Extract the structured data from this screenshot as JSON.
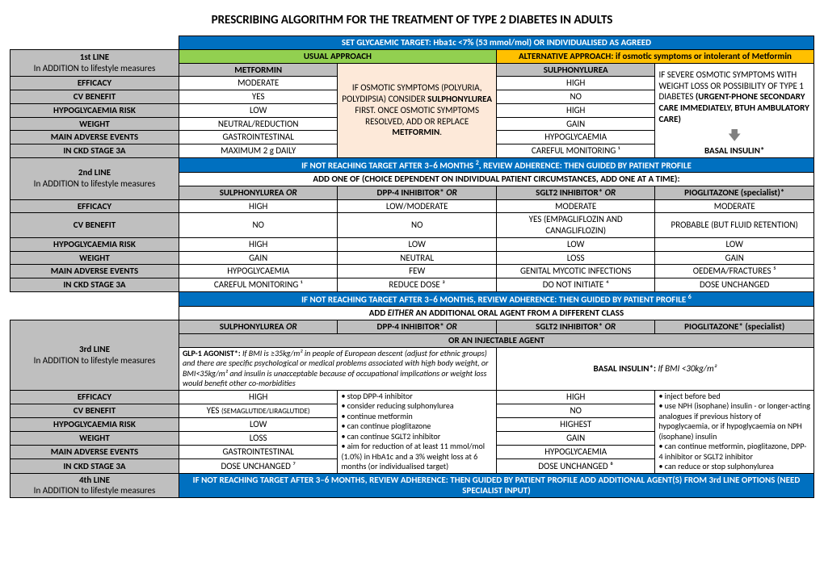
{
  "title": "PRESCRIBING ALGORITHM FOR THE TREATMENT OF TYPE 2 DIABETES IN ADULTS",
  "colors": {
    "blue": "#0070c0",
    "green": "#92d050",
    "orange": "#ffc000",
    "gray": "#bfbfbf",
    "amber": "#fde9d9"
  },
  "banner_target": "SET GLYCAEMIC TARGET: Hba1c <7% (53 mmol/mol) OR INDIVIDUALISED AS AGREED",
  "line1": {
    "label": "1st LINE",
    "sublabel": "In ADDITION to lifestyle measures",
    "usual": "USUAL APPROACH",
    "alt": "ALTERNATIVE APPROACH: if osmotic symptoms or intolerant of Metformin",
    "met_header": "METFORMIN",
    "su_header": "SULPHONYLUREA",
    "amber_html": "IF OSMOTIC SYMPTOMS (POLYURIA, POLYDIPSIA) CONSIDER <b>SULPHONYLUREA</b> FIRST. ONCE OSMOTIC SYMPTOMS RESOLVED, ADD OR REPLACE <b>METFORMIN</b>.",
    "right_note_html": "IF SEVERE OSMOTIC SYMPTOMS WITH WEIGHT LOSS OR POSSIBILITY OF TYPE 1 DIABETES <b>(URGENT-PHONE SECONDARY CARE IMMEDIATELY, BTUH AMBULATORY CARE)</b>",
    "arrow": "🡇",
    "basal": "BASAL INSULIN*",
    "rows": [
      {
        "k": "EFFICACY",
        "m": "MODERATE",
        "s": "HIGH"
      },
      {
        "k": "CV BENEFIT",
        "m": "YES",
        "s": "NO"
      },
      {
        "k": "HYPOGLYCAEMIA RISK",
        "m": "LOW",
        "s": "HIGH"
      },
      {
        "k": "WEIGHT",
        "m": "NEUTRAL/REDUCTION",
        "s": "GAIN"
      },
      {
        "k": "MAIN ADVERSE EVENTS",
        "m": "GASTROINTESTINAL",
        "s": "HYPOGLYCAEMIA"
      },
      {
        "k": "IN CKD STAGE 3A",
        "m": "MAXIMUM 2 g DAILY",
        "s": "CAREFUL MONITORING ¹"
      }
    ]
  },
  "banner_2a_html": "IF NOT REACHING TARGET AFTER 3–6 MONTHS <span class='sup'>2</span>, REVIEW ADHERENCE: THEN GUIDED BY PATIENT PROFILE",
  "banner_2b_html": "<b>ADD ONE OF (CHOICE DEPENDENT ON INDIVIDUAL PATIENT CIRCUMSTANCES, ADD ONE AT A TIME):</b>",
  "line2": {
    "label": "2nd LINE",
    "sublabel": "In ADDITION to lifestyle measures",
    "cols": [
      "SULPHONYLUREA <i>OR</i>",
      "DPP-4 INHIBITOR* <i>OR</i>",
      "SGLT2 INHIBITOR* <i>OR</i>",
      "PIOGLITAZONE (specialist)*"
    ],
    "rows": [
      {
        "k": "EFFICACY",
        "v": [
          "HIGH",
          "LOW/MODERATE",
          "MODERATE",
          "MODERATE"
        ]
      },
      {
        "k": "CV BENEFIT",
        "v": [
          "NO",
          "NO",
          "YES (EMPAGLIFLOZIN AND CANAGLIFLOZIN)",
          "PROBABLE (BUT FLUID RETENTION)"
        ]
      },
      {
        "k": "HYPOGLYCAEMIA RISK",
        "v": [
          "HIGH",
          "LOW",
          "LOW",
          "LOW"
        ]
      },
      {
        "k": "WEIGHT",
        "v": [
          "GAIN",
          "NEUTRAL",
          "LOSS",
          "GAIN"
        ]
      },
      {
        "k": "MAIN ADVERSE EVENTS",
        "v": [
          "HYPOGLYCAEMIA",
          "FEW",
          "GENITAL MYCOTIC INFECTIONS",
          "OEDEMA/FRACTURES ⁵"
        ]
      },
      {
        "k": "IN CKD STAGE 3A",
        "v": [
          "CAREFUL MONITORING ¹",
          "REDUCE DOSE ³",
          "DO NOT INITIATE ⁴",
          "DOSE UNCHANGED"
        ]
      }
    ]
  },
  "banner_3a_html": "IF NOT REACHING TARGET AFTER 3–6 MONTHS, REVIEW ADHERENCE: THEN GUIDED BY PATIENT PROFILE <span class='sup'>6</span>",
  "banner_3b_html": "<b>ADD <i>EITHER</i> AN ADDITIONAL ORAL AGENT FROM A DIFFERENT CLASS</b>",
  "line3": {
    "label": "3rd LINE",
    "sublabel": "In ADDITION to lifestyle measures",
    "cols": [
      "SULPHONYLUREA <i>OR</i>",
      "DPP-4 INHIBITOR* <i>OR</i>",
      "SGLT2 INHIBITOR* <i>OR</i>",
      "PIOGLITAZONE* (specialist)"
    ],
    "inject_label": "OR AN INJECTABLE AGENT",
    "glp1_html": "<b>GLP-1 AGONIST*:</b> <i>If BMI is ≥35kg/m² in people of European descent (adjust for ethnic groups) and there are specific psychological or medical problems associated with high body weight, or BMI&lt;35kg/m² and insulin is unacceptable because of occupational implications or weight loss would benefit other co-morbidities</i>",
    "basal_html": "<b>BASAL INSULIN*:</b> <i>If BMI &lt;30kg/m²</i>",
    "mid_bullets": [
      "stop DPP-4 inhibitor",
      "consider reducing sulphonylurea",
      "continue metformin",
      "can continue pioglitazone",
      "can continue SGLT2 inhibitor",
      "aim for reduction of at least 11 mmol/mol (1.0%) in HbA1c and a 3% weight loss at 6 months (or individualised target)"
    ],
    "right_bullets": [
      "inject before bed",
      "use NPH (isophane) insulin - or longer-acting analogues if previous history of hypoglycaemia, or if hypoglycaemia on NPH (isophane) insulin",
      "can continue metformin, pioglitazone, DPP-4 inhibitor or SGLT2 inhibitor",
      "can reduce or stop sulphonylurea"
    ],
    "rows": [
      {
        "k": "EFFICACY",
        "g": "HIGH",
        "b": "HIGH"
      },
      {
        "k": "CV BENEFIT",
        "g": "YES <span style='font-size:9px'>(SEMAGLUTIDE/LIRAGLUTIDE)</span>",
        "b": "NO"
      },
      {
        "k": "HYPOGLYCAEMIA RISK",
        "g": "LOW",
        "b": "HIGHEST"
      },
      {
        "k": "WEIGHT",
        "g": "LOSS",
        "b": "GAIN"
      },
      {
        "k": "MAIN ADVERSE EVENTS",
        "g": "GASTROINTESTINAL",
        "b": "HYPOGLYCAEMIA"
      },
      {
        "k": "IN CKD STAGE 3A",
        "g": "DOSE UNCHANGED ⁷",
        "b": "DOSE UNCHANGED ⁸"
      }
    ]
  },
  "line4": {
    "label": "4th LINE",
    "sublabel": "In ADDITION to lifestyle measures",
    "banner_html": "IF NOT REACHING TARGET AFTER 3–6 MONTHS, REVIEW ADHERENCE: THEN GUIDED BY PATIENT PROFILE ADD ADDITIONAL AGENT(S) FROM 3rd LINE OPTIONS (NEED SPECIALIST INPUT)"
  }
}
